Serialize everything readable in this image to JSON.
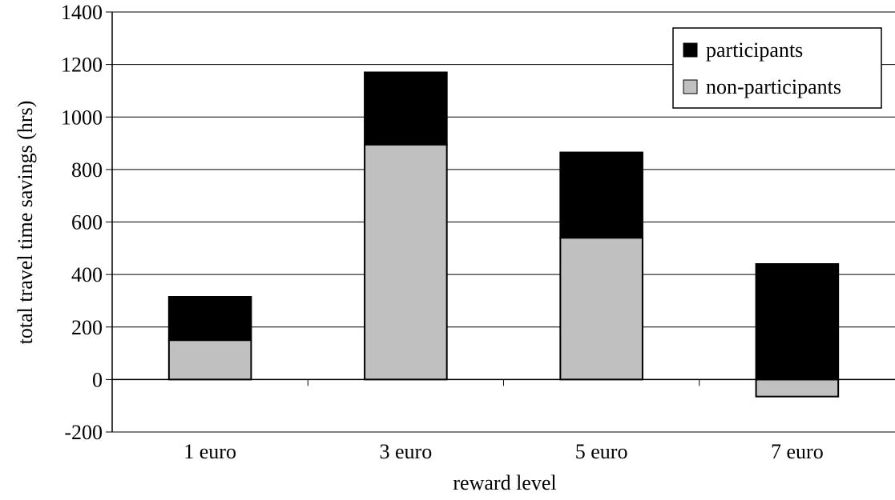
{
  "chart_data": {
    "type": "bar",
    "stacked": true,
    "title": "",
    "xlabel": "reward level",
    "ylabel": "total travel time savings (hrs)",
    "ylim": [
      -200,
      1400
    ],
    "yticks": [
      -200,
      0,
      200,
      400,
      600,
      800,
      1000,
      1200,
      1400
    ],
    "grid": true,
    "legend_position": "top-right",
    "categories": [
      "1 euro",
      "3 euro",
      "5 euro",
      "7 euro"
    ],
    "series": [
      {
        "name": "non-participants",
        "color": "#c0c0c0",
        "values": [
          150,
          895,
          540,
          -65
        ]
      },
      {
        "name": "participants",
        "color": "#000000",
        "values": [
          165,
          275,
          325,
          440
        ]
      }
    ],
    "legend": [
      "participants",
      "non-participants"
    ]
  }
}
